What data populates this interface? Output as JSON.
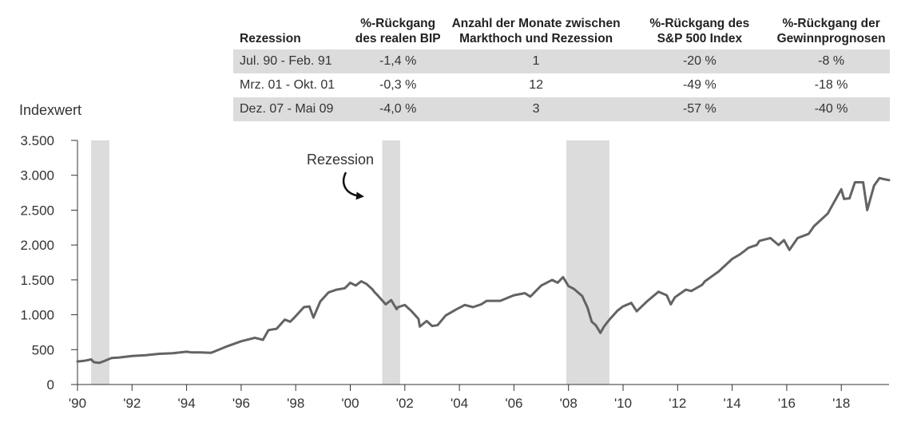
{
  "table": {
    "headers": [
      "Rezession",
      "%-Rückgang\ndes realen BIP",
      "Anzahl der Monate zwischen\nMarkthoch und Rezession",
      "%-Rückgang des\nS&P 500 Index",
      "%-Rückgang der\nGewinnprognosen"
    ],
    "rows": [
      [
        "Jul. 90 - Feb. 91",
        "-1,4 %",
        "1",
        "-20 %",
        "-8 %"
      ],
      [
        "Mrz. 01 - Okt. 01",
        "-0,3 %",
        "12",
        "-49 %",
        "-18 %"
      ],
      [
        "Dez. 07 - Mai 09",
        "-4,0 %",
        "3",
        "-57 %",
        "-40 %"
      ]
    ]
  },
  "chart_data": {
    "type": "line",
    "ylabel": "Indexwert",
    "annotation": "Rezession",
    "ylim": [
      0,
      3500
    ],
    "xlim": [
      1990,
      2019.75
    ],
    "y_ticks": [
      0,
      500,
      1000,
      1500,
      2000,
      2500,
      3000,
      3500
    ],
    "y_tick_labels": [
      "0",
      "500",
      "1.000",
      "1.500",
      "2.000",
      "2.500",
      "3.000",
      "3.500"
    ],
    "x_ticks": [
      1990,
      1992,
      1994,
      1996,
      1998,
      2000,
      2002,
      2004,
      2006,
      2008,
      2010,
      2012,
      2014,
      2016,
      2018
    ],
    "x_tick_labels": [
      "'90",
      "'92",
      "'94",
      "'96",
      "'98",
      "'00",
      "'02",
      "'04",
      "'06",
      "'08",
      "'10",
      "'12",
      "'14",
      "'16",
      "'18"
    ],
    "recessions": [
      {
        "start": 1990.5,
        "end": 1991.17
      },
      {
        "start": 2001.17,
        "end": 2001.83
      },
      {
        "start": 2007.92,
        "end": 2009.5
      }
    ],
    "colors": {
      "line": "#636363",
      "shade": "#dcdcdc",
      "axis": "#333333"
    },
    "series": [
      {
        "x": [
          1990.0,
          1990.25,
          1990.5,
          1990.6,
          1990.8,
          1991.0,
          1991.25,
          1991.5,
          1992.0,
          1992.5,
          1993.0,
          1993.5,
          1994.0,
          1994.2,
          1994.5,
          1994.9,
          1995.0,
          1995.5,
          1996.0,
          1996.5,
          1996.8,
          1997.0,
          1997.3,
          1997.6,
          1997.8,
          1998.0,
          1998.3,
          1998.5,
          1998.65,
          1998.9,
          1999.2,
          1999.5,
          1999.8,
          2000.0,
          2000.2,
          2000.4,
          2000.6,
          2000.8,
          2000.9,
          2001.0,
          2001.3,
          2001.5,
          2001.7,
          2001.75,
          2002.0,
          2002.25,
          2002.5,
          2002.55,
          2002.8,
          2003.0,
          2003.2,
          2003.5,
          2003.9,
          2004.2,
          2004.5,
          2004.8,
          2005.0,
          2005.5,
          2006.0,
          2006.4,
          2006.6,
          2007.0,
          2007.4,
          2007.6,
          2007.8,
          2008.0,
          2008.2,
          2008.5,
          2008.7,
          2008.85,
          2009.0,
          2009.17,
          2009.3,
          2009.5,
          2009.8,
          2010.0,
          2010.3,
          2010.5,
          2010.9,
          2011.3,
          2011.6,
          2011.75,
          2011.9,
          2012.3,
          2012.5,
          2012.9,
          2013.0,
          2013.5,
          2014.0,
          2014.3,
          2014.6,
          2014.9,
          2015.0,
          2015.4,
          2015.7,
          2015.9,
          2016.1,
          2016.4,
          2016.8,
          2017.0,
          2017.5,
          2018.0,
          2018.1,
          2018.3,
          2018.5,
          2018.8,
          2018.95,
          2019.2,
          2019.4,
          2019.5,
          2019.75
        ],
        "y": [
          330,
          340,
          360,
          320,
          310,
          340,
          380,
          385,
          410,
          420,
          440,
          450,
          470,
          460,
          460,
          455,
          470,
          550,
          620,
          670,
          640,
          780,
          800,
          930,
          900,
          980,
          1110,
          1120,
          960,
          1190,
          1320,
          1360,
          1380,
          1460,
          1420,
          1480,
          1440,
          1370,
          1320,
          1280,
          1150,
          1210,
          1080,
          1110,
          1140,
          1050,
          940,
          830,
          910,
          840,
          850,
          990,
          1080,
          1140,
          1110,
          1150,
          1200,
          1200,
          1280,
          1310,
          1260,
          1420,
          1500,
          1460,
          1540,
          1410,
          1370,
          1270,
          1100,
          900,
          850,
          740,
          830,
          930,
          1060,
          1120,
          1170,
          1050,
          1200,
          1330,
          1280,
          1150,
          1250,
          1360,
          1340,
          1430,
          1480,
          1620,
          1800,
          1870,
          1960,
          2000,
          2060,
          2100,
          2000,
          2070,
          1930,
          2100,
          2160,
          2270,
          2450,
          2800,
          2660,
          2670,
          2900,
          2900,
          2500,
          2850,
          2960,
          2950,
          2930
        ]
      }
    ]
  }
}
